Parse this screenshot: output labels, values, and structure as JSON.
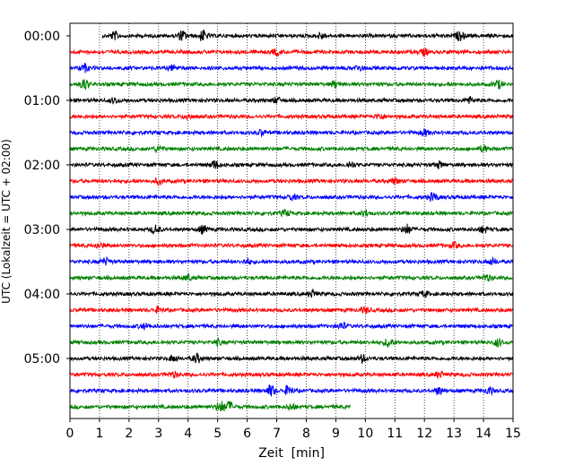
{
  "chart_data": {
    "type": "line",
    "title": "",
    "xlabel": "Zeit  [min]",
    "ylabel": "UTC (Lokalzeit = UTC + 02:00)",
    "xlim": [
      0,
      15
    ],
    "xticks": [
      "0",
      "1",
      "2",
      "3",
      "4",
      "5",
      "6",
      "7",
      "8",
      "9",
      "10",
      "11",
      "12",
      "13",
      "14",
      "15"
    ],
    "yticks": [
      "00:00",
      "01:00",
      "02:00",
      "03:00",
      "04:00",
      "05:00"
    ],
    "grid": "vertical dotted at every minute",
    "trace_colors": [
      "#000000",
      "#ff0000",
      "#0000ff",
      "#008000"
    ],
    "trace_interval_minutes": 15,
    "traces": [
      {
        "start_utc": "00:00",
        "x_start": 1.1,
        "x_end": 15,
        "color": "#000000",
        "events": [
          [
            1.5,
            0.7
          ],
          [
            3.8,
            0.9
          ],
          [
            4.5,
            1.0
          ],
          [
            8.5,
            0.6
          ],
          [
            13.2,
            0.8
          ]
        ]
      },
      {
        "start_utc": "00:15",
        "x_start": 0,
        "x_end": 15,
        "color": "#ff0000",
        "events": [
          [
            7.0,
            0.5
          ],
          [
            12.0,
            0.6
          ]
        ]
      },
      {
        "start_utc": "00:30",
        "x_start": 0,
        "x_end": 15,
        "color": "#0000ff",
        "events": [
          [
            0.5,
            0.7
          ],
          [
            3.5,
            0.5
          ],
          [
            9.8,
            0.5
          ]
        ]
      },
      {
        "start_utc": "00:45",
        "x_start": 0,
        "x_end": 15,
        "color": "#008000",
        "events": [
          [
            0.5,
            1.0
          ],
          [
            9.0,
            0.6
          ],
          [
            14.5,
            0.7
          ]
        ]
      },
      {
        "start_utc": "01:00",
        "x_start": 0,
        "x_end": 15,
        "color": "#000000",
        "events": [
          [
            1.5,
            0.5
          ],
          [
            7.0,
            0.5
          ],
          [
            13.5,
            0.6
          ]
        ]
      },
      {
        "start_utc": "01:15",
        "x_start": 0,
        "x_end": 15,
        "color": "#ff0000",
        "events": [
          [
            4.0,
            0.5
          ],
          [
            10.5,
            0.5
          ]
        ]
      },
      {
        "start_utc": "01:30",
        "x_start": 0,
        "x_end": 15,
        "color": "#0000ff",
        "events": [
          [
            6.5,
            0.5
          ],
          [
            12.0,
            0.6
          ]
        ]
      },
      {
        "start_utc": "01:45",
        "x_start": 0,
        "x_end": 15,
        "color": "#008000",
        "events": [
          [
            3.0,
            0.5
          ],
          [
            14.0,
            0.6
          ]
        ]
      },
      {
        "start_utc": "02:00",
        "x_start": 0,
        "x_end": 15,
        "color": "#000000",
        "events": [
          [
            4.9,
            0.8
          ],
          [
            9.5,
            0.6
          ],
          [
            12.5,
            0.6
          ]
        ]
      },
      {
        "start_utc": "02:15",
        "x_start": 0,
        "x_end": 15,
        "color": "#ff0000",
        "events": [
          [
            3.0,
            0.5
          ],
          [
            11.0,
            0.5
          ]
        ]
      },
      {
        "start_utc": "02:30",
        "x_start": 0,
        "x_end": 15,
        "color": "#0000ff",
        "events": [
          [
            7.5,
            0.5
          ],
          [
            12.3,
            0.8
          ]
        ]
      },
      {
        "start_utc": "02:45",
        "x_start": 0,
        "x_end": 15,
        "color": "#008000",
        "events": [
          [
            7.3,
            0.6
          ],
          [
            10.0,
            0.5
          ]
        ]
      },
      {
        "start_utc": "03:00",
        "x_start": 0,
        "x_end": 15,
        "color": "#000000",
        "events": [
          [
            2.9,
            0.8
          ],
          [
            4.5,
            0.7
          ],
          [
            11.4,
            0.9
          ],
          [
            14.0,
            0.6
          ]
        ]
      },
      {
        "start_utc": "03:15",
        "x_start": 0,
        "x_end": 15,
        "color": "#ff0000",
        "events": [
          [
            1.0,
            0.5
          ],
          [
            13.0,
            0.5
          ]
        ]
      },
      {
        "start_utc": "03:30",
        "x_start": 0,
        "x_end": 15,
        "color": "#0000ff",
        "events": [
          [
            1.2,
            0.6
          ],
          [
            6.0,
            0.5
          ],
          [
            14.3,
            0.6
          ]
        ]
      },
      {
        "start_utc": "03:45",
        "x_start": 0,
        "x_end": 15,
        "color": "#008000",
        "events": [
          [
            4.0,
            0.5
          ],
          [
            14.1,
            0.6
          ]
        ]
      },
      {
        "start_utc": "04:00",
        "x_start": 0,
        "x_end": 15,
        "color": "#000000",
        "events": [
          [
            8.2,
            0.6
          ],
          [
            12.0,
            0.5
          ]
        ]
      },
      {
        "start_utc": "04:15",
        "x_start": 0,
        "x_end": 15,
        "color": "#ff0000",
        "events": [
          [
            3.0,
            0.5
          ],
          [
            10.0,
            0.5
          ]
        ]
      },
      {
        "start_utc": "04:30",
        "x_start": 0,
        "x_end": 15,
        "color": "#0000ff",
        "events": [
          [
            2.5,
            0.5
          ],
          [
            9.2,
            0.6
          ]
        ]
      },
      {
        "start_utc": "04:45",
        "x_start": 0,
        "x_end": 15,
        "color": "#008000",
        "events": [
          [
            5.0,
            0.5
          ],
          [
            10.8,
            0.9
          ],
          [
            14.5,
            0.7
          ]
        ]
      },
      {
        "start_utc": "05:00",
        "x_start": 0,
        "x_end": 15,
        "color": "#000000",
        "events": [
          [
            3.5,
            0.6
          ],
          [
            4.3,
            0.8
          ],
          [
            9.9,
            0.6
          ]
        ]
      },
      {
        "start_utc": "05:15",
        "x_start": 0,
        "x_end": 15,
        "color": "#ff0000",
        "events": [
          [
            3.5,
            0.5
          ],
          [
            12.5,
            0.5
          ]
        ]
      },
      {
        "start_utc": "05:30",
        "x_start": 0,
        "x_end": 15,
        "color": "#0000ff",
        "events": [
          [
            6.8,
            1.0
          ],
          [
            7.4,
            0.9
          ],
          [
            12.5,
            0.7
          ],
          [
            14.2,
            0.6
          ]
        ]
      },
      {
        "start_utc": "05:45",
        "x_start": 0,
        "x_end": 9.5,
        "color": "#008000",
        "events": [
          [
            5.1,
            1.0
          ],
          [
            5.4,
            0.9
          ],
          [
            7.5,
            0.6
          ]
        ]
      }
    ]
  }
}
